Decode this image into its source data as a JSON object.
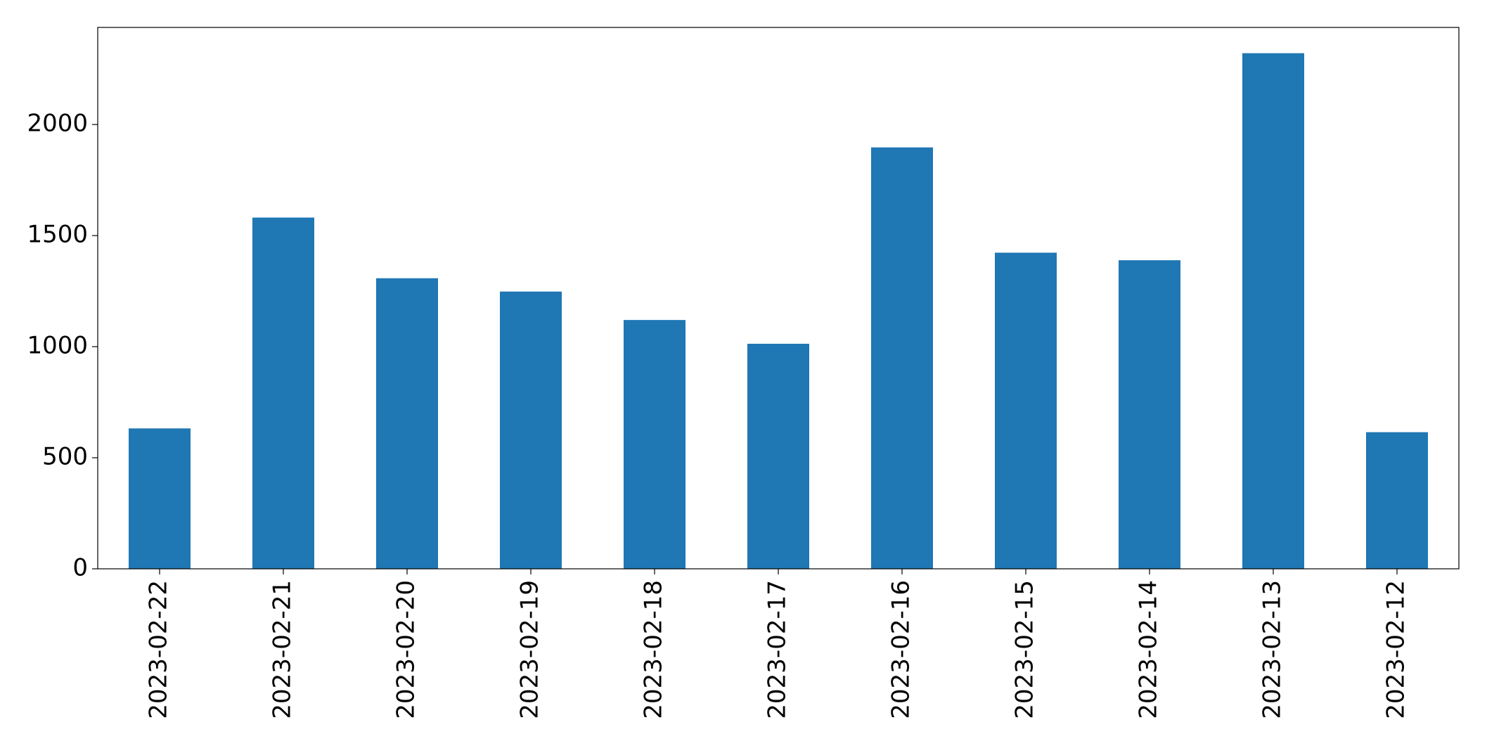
{
  "chart_data": {
    "type": "bar",
    "categories": [
      "2023-02-22",
      "2023-02-21",
      "2023-02-20",
      "2023-02-19",
      "2023-02-18",
      "2023-02-17",
      "2023-02-16",
      "2023-02-15",
      "2023-02-14",
      "2023-02-13",
      "2023-02-12"
    ],
    "values": [
      632,
      1581,
      1308,
      1248,
      1120,
      1013,
      1897,
      1423,
      1389,
      2321,
      615
    ],
    "color": "#1f77b4",
    "ylim": [
      0,
      2437
    ],
    "yticks": [
      0,
      500,
      1000,
      1500,
      2000
    ],
    "grid": false
  }
}
